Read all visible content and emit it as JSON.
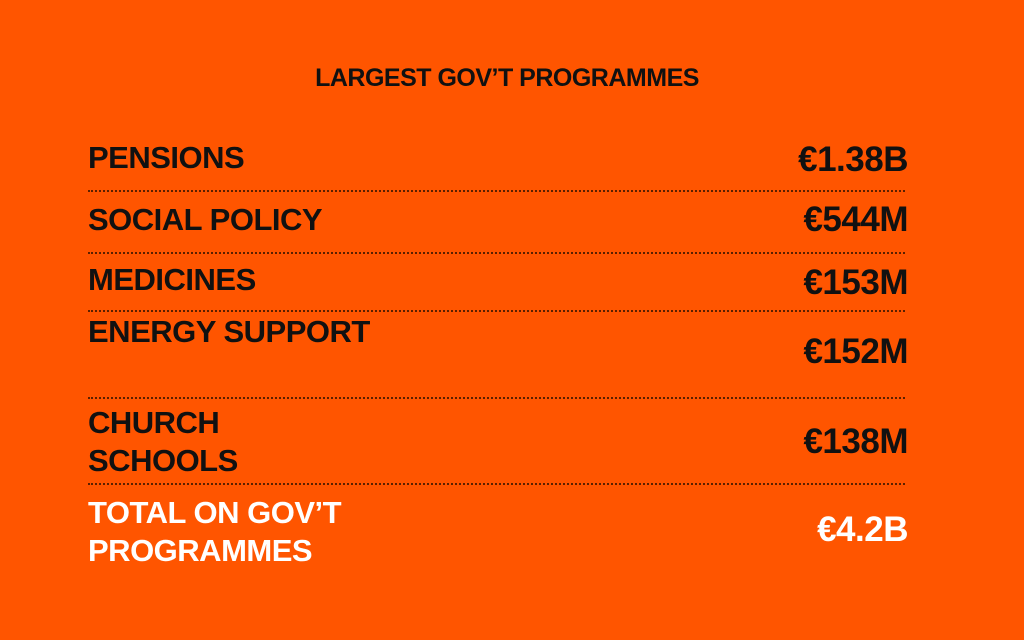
{
  "title": "LARGEST GOV’T PROGRAMMES",
  "rows": [
    [
      "PENSIONS",
      "€1.38B"
    ],
    [
      "SOCIAL POLICY",
      "€544M"
    ],
    [
      "MEDICINES",
      "€153M"
    ],
    [
      "ENERGY SUPPORT",
      "€152M"
    ],
    [
      "CHURCH SCHOOLS",
      "€138M"
    ]
  ],
  "total": [
    "TOTAL ON GOV’T PROGRAMMES",
    "€4.2B"
  ]
}
